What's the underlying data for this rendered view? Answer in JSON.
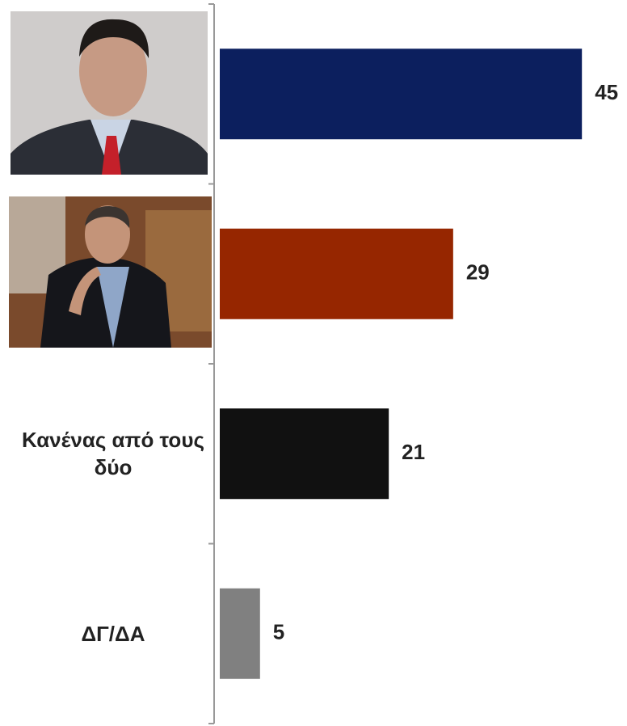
{
  "chart_data": {
    "type": "bar",
    "orientation": "horizontal",
    "categories": [
      null,
      null,
      "Κανένας από τους δύο",
      "ΔΓ/ΔΑ"
    ],
    "values": [
      45,
      29,
      21,
      5
    ],
    "colors": [
      "#0c1f5e",
      "#962600",
      "#111111",
      "#808080"
    ]
  }
}
